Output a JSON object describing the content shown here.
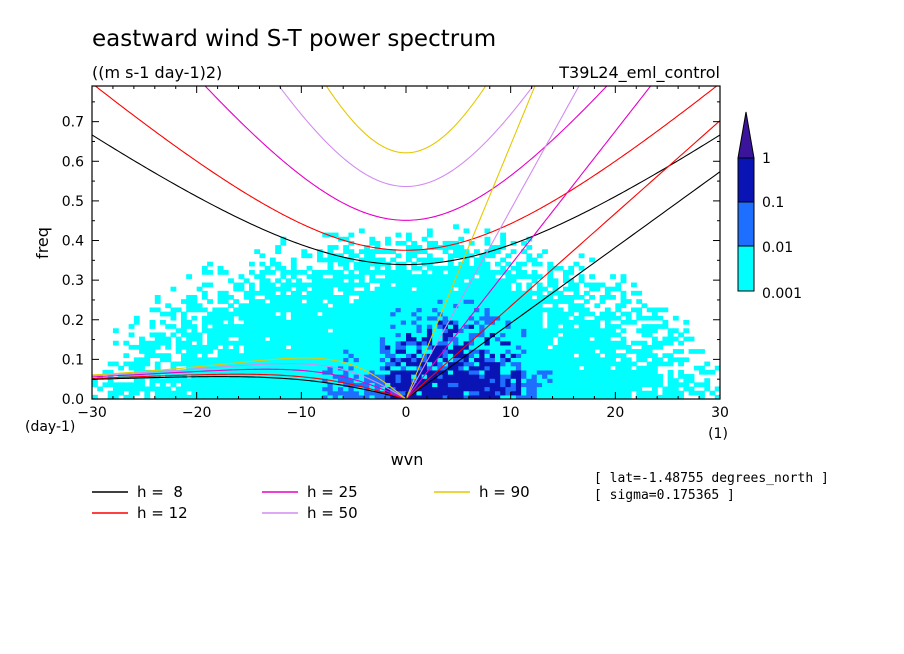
{
  "chart_data": {
    "type": "contour",
    "title": "eastward wind S-T power spectrum",
    "units": "((m s-1 day-1)2)",
    "run_label": "T39L24_eml_control",
    "xlabel": "wvn",
    "ylabel": "freq",
    "x_unit": "(1)",
    "y_unit": "(day-1)",
    "xlim": [
      -30,
      30
    ],
    "ylim": [
      0,
      0.79
    ],
    "x_ticks": [
      -30,
      -20,
      -10,
      0,
      10,
      20,
      30
    ],
    "y_ticks": [
      0,
      0.1,
      0.2,
      0.3,
      0.4,
      0.5,
      0.6,
      0.7
    ],
    "contour_levels": [
      0.001,
      0.01,
      0.1,
      1
    ],
    "level_colors": [
      "#00ffff",
      "#1e6fff",
      "#0a14b4",
      "#3a149a"
    ],
    "colorbar_labels": [
      "1",
      "0.1",
      "0.01",
      "0.001"
    ],
    "dispersion_curves": [
      {
        "name": "h =  8",
        "h": 8,
        "color": "#000000"
      },
      {
        "name": "h = 12",
        "h": 12,
        "color": "#ff0000"
      },
      {
        "name": "h = 25",
        "h": 25,
        "color": "#e600c8"
      },
      {
        "name": "h = 50",
        "h": 50,
        "color": "#d28cf0"
      },
      {
        "name": "h = 90",
        "h": 90,
        "color": "#e6c800"
      }
    ],
    "annotations": [
      "[ lat=-1.48755 degrees_north ]",
      "[ sigma=0.175365 ]"
    ]
  }
}
